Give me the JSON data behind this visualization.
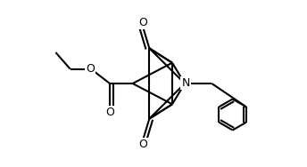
{
  "figsize": [
    3.44,
    1.88
  ],
  "dpi": 100,
  "bg": "#ffffff",
  "lc": "#000000",
  "lw": 1.5,
  "fs": 9.0,
  "xlim": [
    -0.5,
    10.5
  ],
  "ylim": [
    0.5,
    8.5
  ]
}
